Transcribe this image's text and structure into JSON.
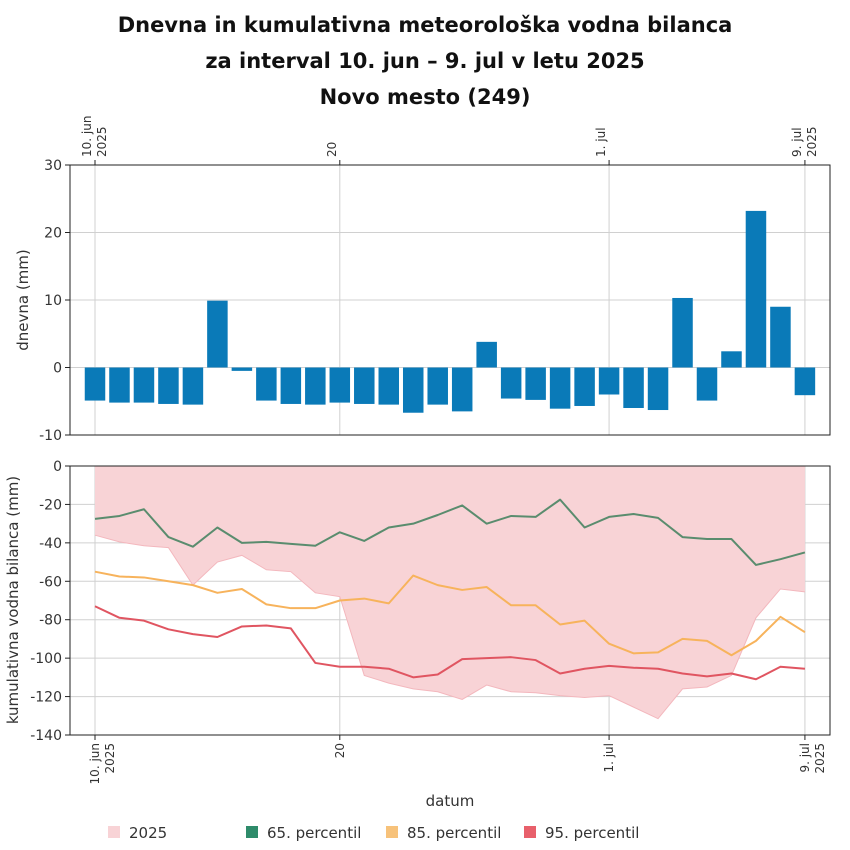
{
  "title": {
    "line1": "Dnevna in kumulativna meteorološka vodna bilanca",
    "line2": "za interval 10. jun – 9. jul v letu 2025",
    "line3": "Novo mesto (249)"
  },
  "x_ticks": [
    {
      "day": 0,
      "line1": "10. jun",
      "line2": "2025"
    },
    {
      "day": 10,
      "line1": "20",
      "line2": ""
    },
    {
      "day": 21,
      "line1": "1. jul",
      "line2": ""
    },
    {
      "day": 29,
      "line1": "9. jul",
      "line2": "2025"
    }
  ],
  "xlabel": "datum",
  "legend": [
    {
      "label": "2025",
      "color": "#f8d3d6"
    },
    {
      "label": "65. percentil",
      "color": "#2e8b6a"
    },
    {
      "label": "85. percentil",
      "color": "#f7c27a"
    },
    {
      "label": "95. percentil",
      "color": "#e8606b"
    }
  ],
  "chart_data": [
    {
      "type": "bar",
      "ylabel": "dnevna (mm)",
      "ylim": [
        -10,
        30
      ],
      "yticks": [
        -10,
        0,
        10,
        20,
        30
      ],
      "color": "#0a7ab8",
      "x": [
        "2025-06-10",
        "2025-06-11",
        "2025-06-12",
        "2025-06-13",
        "2025-06-14",
        "2025-06-15",
        "2025-06-16",
        "2025-06-17",
        "2025-06-18",
        "2025-06-19",
        "2025-06-20",
        "2025-06-21",
        "2025-06-22",
        "2025-06-23",
        "2025-06-24",
        "2025-06-25",
        "2025-06-26",
        "2025-06-27",
        "2025-06-28",
        "2025-06-29",
        "2025-06-30",
        "2025-07-01",
        "2025-07-02",
        "2025-07-03",
        "2025-07-04",
        "2025-07-05",
        "2025-07-06",
        "2025-07-07",
        "2025-07-08",
        "2025-07-09"
      ],
      "values": [
        -4.9,
        -5.2,
        -5.2,
        -5.4,
        -5.5,
        9.9,
        -0.5,
        -4.9,
        -5.4,
        -5.5,
        -5.2,
        -5.4,
        -5.5,
        -6.7,
        -5.5,
        -6.5,
        3.8,
        -4.6,
        -4.8,
        -6.1,
        -5.7,
        -4.0,
        -6.0,
        -6.3,
        10.3,
        -4.9,
        2.4,
        23.2,
        9.0,
        -4.1
      ]
    },
    {
      "type": "area",
      "ylabel": "kumulativna vodna bilanca (mm)",
      "ylim": [
        -140,
        0
      ],
      "yticks": [
        -140,
        -120,
        -100,
        -80,
        -60,
        -40,
        -20,
        0
      ],
      "x": [
        "2025-06-10",
        "2025-06-11",
        "2025-06-12",
        "2025-06-13",
        "2025-06-14",
        "2025-06-15",
        "2025-06-16",
        "2025-06-17",
        "2025-06-18",
        "2025-06-19",
        "2025-06-20",
        "2025-06-21",
        "2025-06-22",
        "2025-06-23",
        "2025-06-24",
        "2025-06-25",
        "2025-06-26",
        "2025-06-27",
        "2025-06-28",
        "2025-06-29",
        "2025-06-30",
        "2025-07-01",
        "2025-07-02",
        "2025-07-03",
        "2025-07-04",
        "2025-07-05",
        "2025-07-06",
        "2025-07-07",
        "2025-07-08",
        "2025-07-09"
      ],
      "series": [
        {
          "name": "2025",
          "type": "area",
          "color": "#f8d3d6",
          "values": [
            -36,
            -39.5,
            -41.5,
            -42.5,
            -62,
            -50,
            -46.5,
            -54,
            -55,
            -66,
            -68,
            -109,
            -113,
            -116,
            -117.5,
            -121.5,
            -114,
            -117.5,
            -118,
            -119.5,
            -120.5,
            -119.5,
            -125.5,
            -131.5,
            -116,
            -115,
            -109,
            -79,
            -64,
            -65.5
          ]
        },
        {
          "name": "65. percentil",
          "type": "line",
          "color": "#5a8c6e",
          "values": [
            -27.5,
            -26,
            -22.5,
            -37,
            -42,
            -32,
            -40,
            -39.5,
            -40.5,
            -41.5,
            -34.5,
            -39,
            -32,
            -30,
            -25.5,
            -20.5,
            -30,
            -26,
            -26.5,
            -17.5,
            -32,
            -26.5,
            -25,
            -27,
            -37,
            -38,
            -38,
            -51.5,
            -48.5,
            -45
          ]
        },
        {
          "name": "85. percentil",
          "type": "line",
          "color": "#f7b35c",
          "values": [
            -55,
            -57.5,
            -58,
            -60,
            -62,
            -66,
            -64,
            -72,
            -74,
            -74,
            -70,
            -69,
            -71.5,
            -57,
            -62,
            -64.5,
            -63,
            -72.5,
            -72.5,
            -82.5,
            -80.5,
            -92.5,
            -97.5,
            -97,
            -90,
            -91,
            -98.5,
            -91,
            -78.5,
            -86.5
          ]
        },
        {
          "name": "95. percentil",
          "type": "line",
          "color": "#e05561",
          "values": [
            -73,
            -79,
            -80.5,
            -85,
            -87.5,
            -89,
            -83.5,
            -83,
            -84.5,
            -102.5,
            -104.5,
            -104.5,
            -105.5,
            -110,
            -108.5,
            -100.5,
            -100,
            -99.5,
            -101,
            -108,
            -105.5,
            -104,
            -105,
            -105.5,
            -108,
            -109.5,
            -108,
            -111,
            -104.5,
            -105.5
          ]
        }
      ]
    }
  ]
}
